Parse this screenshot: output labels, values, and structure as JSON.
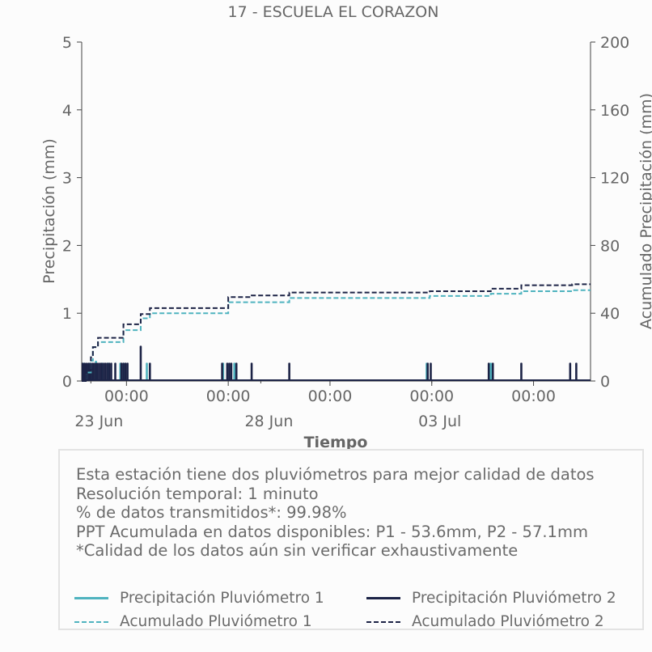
{
  "chart_data": {
    "type": "bar",
    "title": "17 - ESCUELA EL CORAZON",
    "xlabel": "Tiempo",
    "ylabel_left": "Precipitación (mm)",
    "ylabel_right": "Acumulado Precipitación (mm)",
    "ylim_left": [
      0,
      5
    ],
    "ylim_right": [
      0,
      200
    ],
    "yticks_left": [
      "0",
      "1",
      "2",
      "3",
      "4",
      "5"
    ],
    "yticks_right": [
      "0",
      "40",
      "80",
      "120",
      "160",
      "200"
    ],
    "xlim_days": [
      0,
      25
    ],
    "xticks_major": [
      {
        "day": 2.2,
        "label": "00:00"
      },
      {
        "day": 7.2,
        "label": "00:00"
      },
      {
        "day": 12.2,
        "label": "00:00"
      },
      {
        "day": 17.2,
        "label": "00:00"
      },
      {
        "day": 22.2,
        "label": "00:00"
      }
    ],
    "xticks_dates": [
      {
        "day": 0.45,
        "label": "23 Jun"
      },
      {
        "day": 8.8,
        "label": "28 Jun"
      },
      {
        "day": 17.2,
        "label": "03 Jul"
      }
    ],
    "grid": false,
    "series": [
      {
        "name": "Precipitación Pluviómetro 1",
        "kind": "bars",
        "color": "#4fb3bf",
        "points": [
          {
            "x": 0.1,
            "y": 0.27
          },
          {
            "x": 0.4,
            "y": 0.27
          },
          {
            "x": 0.7,
            "y": 0.3
          },
          {
            "x": 1.0,
            "y": 0.27
          },
          {
            "x": 1.3,
            "y": 0.27
          },
          {
            "x": 1.9,
            "y": 0.27
          },
          {
            "x": 2.05,
            "y": 0.27
          },
          {
            "x": 3.2,
            "y": 0.27
          },
          {
            "x": 6.95,
            "y": 0.27
          },
          {
            "x": 7.5,
            "y": 0.27
          },
          {
            "x": 16.95,
            "y": 0.27
          },
          {
            "x": 20.1,
            "y": 0.27
          }
        ]
      },
      {
        "name": "Precipitación Pluviómetro 2",
        "kind": "bars",
        "color": "#1c2346",
        "points": [
          {
            "x": 0.05,
            "y": 0.27
          },
          {
            "x": 0.15,
            "y": 0.27
          },
          {
            "x": 0.25,
            "y": 0.27
          },
          {
            "x": 0.35,
            "y": 0.27
          },
          {
            "x": 0.45,
            "y": 0.27
          },
          {
            "x": 0.55,
            "y": 0.27
          },
          {
            "x": 0.65,
            "y": 0.27
          },
          {
            "x": 0.75,
            "y": 0.27
          },
          {
            "x": 0.85,
            "y": 0.27
          },
          {
            "x": 0.95,
            "y": 0.27
          },
          {
            "x": 1.05,
            "y": 0.27
          },
          {
            "x": 1.15,
            "y": 0.27
          },
          {
            "x": 1.25,
            "y": 0.27
          },
          {
            "x": 1.35,
            "y": 0.27
          },
          {
            "x": 1.45,
            "y": 0.27
          },
          {
            "x": 1.65,
            "y": 0.27
          },
          {
            "x": 1.95,
            "y": 0.27
          },
          {
            "x": 2.05,
            "y": 0.27
          },
          {
            "x": 2.15,
            "y": 0.27
          },
          {
            "x": 2.25,
            "y": 0.27
          },
          {
            "x": 2.9,
            "y": 0.52
          },
          {
            "x": 3.35,
            "y": 0.27
          },
          {
            "x": 6.9,
            "y": 0.27
          },
          {
            "x": 7.15,
            "y": 0.27
          },
          {
            "x": 7.25,
            "y": 0.27
          },
          {
            "x": 7.35,
            "y": 0.27
          },
          {
            "x": 7.6,
            "y": 0.27
          },
          {
            "x": 8.35,
            "y": 0.27
          },
          {
            "x": 10.2,
            "y": 0.27
          },
          {
            "x": 17.0,
            "y": 0.27
          },
          {
            "x": 17.15,
            "y": 0.27
          },
          {
            "x": 20.0,
            "y": 0.27
          },
          {
            "x": 20.2,
            "y": 0.27
          },
          {
            "x": 21.6,
            "y": 0.27
          },
          {
            "x": 24.0,
            "y": 0.27
          },
          {
            "x": 24.3,
            "y": 0.27
          }
        ]
      },
      {
        "name": "Acumulado Pluviómetro 1",
        "kind": "step",
        "color": "#4fb3bf",
        "points": [
          {
            "x": 0.0,
            "y": 0
          },
          {
            "x": 0.25,
            "y": 5
          },
          {
            "x": 0.45,
            "y": 12
          },
          {
            "x": 0.55,
            "y": 20
          },
          {
            "x": 0.8,
            "y": 23
          },
          {
            "x": 2.05,
            "y": 30
          },
          {
            "x": 2.9,
            "y": 37
          },
          {
            "x": 3.35,
            "y": 40
          },
          {
            "x": 7.2,
            "y": 46.5
          },
          {
            "x": 10.2,
            "y": 49
          },
          {
            "x": 17.1,
            "y": 50.2
          },
          {
            "x": 20.1,
            "y": 51.5
          },
          {
            "x": 21.6,
            "y": 53
          },
          {
            "x": 24.1,
            "y": 53.6
          },
          {
            "x": 25.0,
            "y": 53.6
          }
        ]
      },
      {
        "name": "Acumulado Pluviómetro 2",
        "kind": "step",
        "color": "#1c2346",
        "points": [
          {
            "x": 0.0,
            "y": 0
          },
          {
            "x": 0.25,
            "y": 6
          },
          {
            "x": 0.45,
            "y": 14
          },
          {
            "x": 0.55,
            "y": 20
          },
          {
            "x": 0.8,
            "y": 25.5
          },
          {
            "x": 2.05,
            "y": 33.5
          },
          {
            "x": 2.9,
            "y": 39.5
          },
          {
            "x": 3.35,
            "y": 43
          },
          {
            "x": 7.2,
            "y": 49.5
          },
          {
            "x": 8.35,
            "y": 50.5
          },
          {
            "x": 10.2,
            "y": 52.2
          },
          {
            "x": 17.1,
            "y": 53
          },
          {
            "x": 20.1,
            "y": 54.5
          },
          {
            "x": 21.6,
            "y": 56.5
          },
          {
            "x": 24.1,
            "y": 57.1
          },
          {
            "x": 25.0,
            "y": 57.1
          }
        ]
      }
    ]
  },
  "info": {
    "line1": "Esta estación tiene dos pluviómetros para mejor calidad de datos",
    "line2": "Resolución temporal: 1 minuto",
    "line3": "% de datos transmitidos*: 99.98%",
    "line4": "PPT Acumulada en datos disponibles: P1 - 53.6mm, P2 - 57.1mm",
    "line5": "*Calidad de los datos aún sin verificar exhaustivamente"
  },
  "legend": {
    "items": [
      {
        "label": "Precipitación Pluviómetro 1",
        "color": "#4fb3bf",
        "style": "solid"
      },
      {
        "label": "Precipitación Pluviómetro 2",
        "color": "#1c2346",
        "style": "solid"
      },
      {
        "label": "Acumulado Pluviómetro 1",
        "color": "#4fb3bf",
        "style": "dashed"
      },
      {
        "label": "Acumulado Pluviómetro 2",
        "color": "#1c2346",
        "style": "dashed"
      }
    ]
  }
}
